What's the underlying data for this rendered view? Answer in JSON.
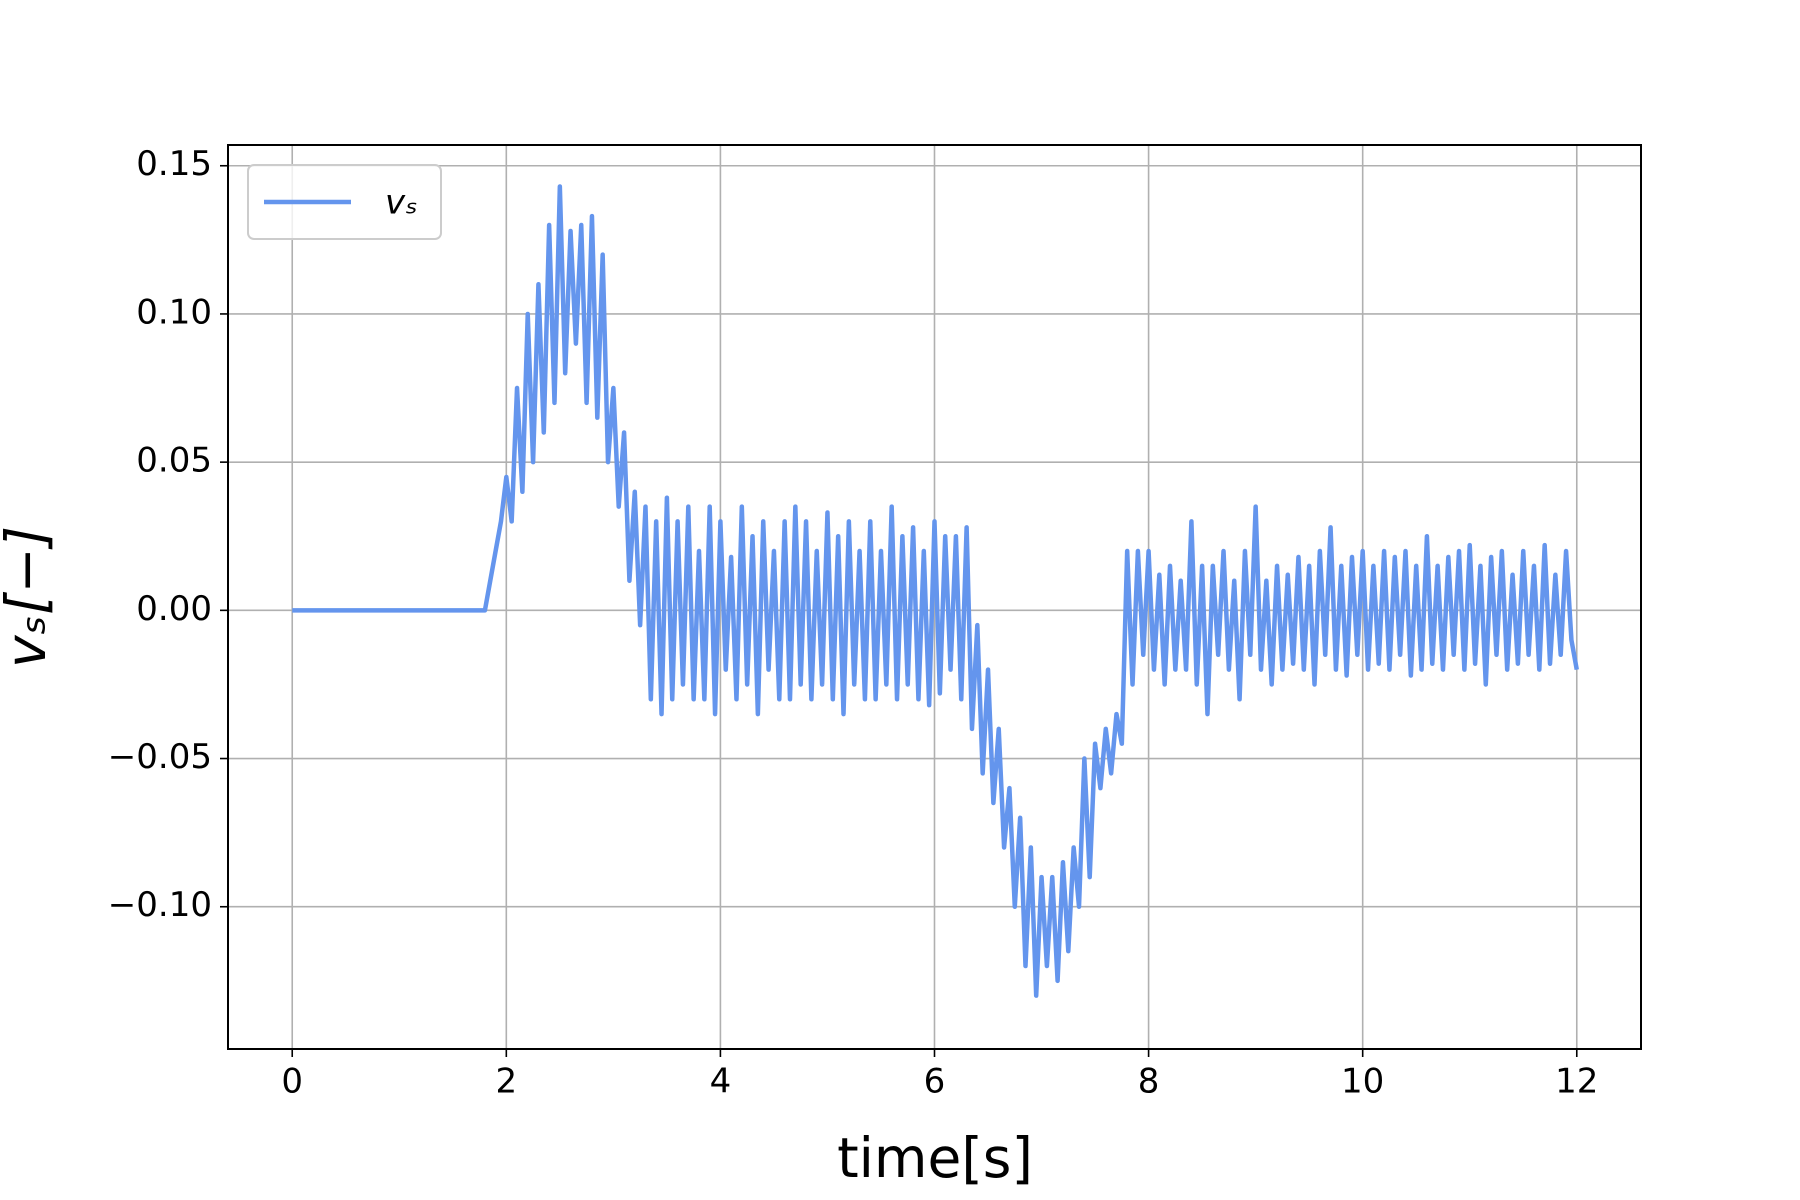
{
  "chart_data": {
    "type": "line",
    "xlabel": "time[s]",
    "ylabel": "vₛ[−]",
    "x": [
      0,
      1.8,
      1.85,
      1.9,
      1.95,
      2.0,
      2.05,
      2.1,
      2.15,
      2.2,
      2.25,
      2.3,
      2.35,
      2.4,
      2.45,
      2.5,
      2.55,
      2.6,
      2.65,
      2.7,
      2.75,
      2.8,
      2.85,
      2.9,
      2.95,
      3.0,
      3.05,
      3.1,
      3.15,
      3.2,
      3.25,
      3.3,
      3.35,
      3.4,
      3.45,
      3.5,
      3.55,
      3.6,
      3.65,
      3.7,
      3.75,
      3.8,
      3.85,
      3.9,
      3.95,
      4.0,
      4.05,
      4.1,
      4.15,
      4.2,
      4.25,
      4.3,
      4.35,
      4.4,
      4.45,
      4.5,
      4.55,
      4.6,
      4.65,
      4.7,
      4.75,
      4.8,
      4.85,
      4.9,
      4.95,
      5.0,
      5.05,
      5.1,
      5.15,
      5.2,
      5.25,
      5.3,
      5.35,
      5.4,
      5.45,
      5.5,
      5.55,
      5.6,
      5.65,
      5.7,
      5.75,
      5.8,
      5.85,
      5.9,
      5.95,
      6.0,
      6.05,
      6.1,
      6.15,
      6.2,
      6.25,
      6.3,
      6.35,
      6.4,
      6.45,
      6.5,
      6.55,
      6.6,
      6.65,
      6.7,
      6.75,
      6.8,
      6.85,
      6.9,
      6.95,
      7.0,
      7.05,
      7.1,
      7.15,
      7.2,
      7.25,
      7.3,
      7.35,
      7.4,
      7.45,
      7.5,
      7.55,
      7.6,
      7.65,
      7.7,
      7.75,
      7.8,
      7.85,
      7.9,
      7.95,
      8.0,
      8.05,
      8.1,
      8.15,
      8.2,
      8.25,
      8.3,
      8.35,
      8.4,
      8.45,
      8.5,
      8.55,
      8.6,
      8.65,
      8.7,
      8.75,
      8.8,
      8.85,
      8.9,
      8.95,
      9.0,
      9.05,
      9.1,
      9.15,
      9.2,
      9.25,
      9.3,
      9.35,
      9.4,
      9.45,
      9.5,
      9.55,
      9.6,
      9.65,
      9.7,
      9.75,
      9.8,
      9.85,
      9.9,
      9.95,
      10.0,
      10.05,
      10.1,
      10.15,
      10.2,
      10.25,
      10.3,
      10.35,
      10.4,
      10.45,
      10.5,
      10.55,
      10.6,
      10.65,
      10.7,
      10.75,
      10.8,
      10.85,
      10.9,
      10.95,
      11.0,
      11.05,
      11.1,
      11.15,
      11.2,
      11.25,
      11.3,
      11.35,
      11.4,
      11.45,
      11.5,
      11.55,
      11.6,
      11.65,
      11.7,
      11.75,
      11.8,
      11.85,
      11.9,
      11.95,
      12.0
    ],
    "series": [
      {
        "name": "vₛ",
        "color": "#6495ed",
        "values": [
          0,
          0,
          0.01,
          0.02,
          0.03,
          0.045,
          0.03,
          0.075,
          0.04,
          0.1,
          0.05,
          0.11,
          0.06,
          0.13,
          0.07,
          0.143,
          0.08,
          0.128,
          0.09,
          0.13,
          0.07,
          0.133,
          0.065,
          0.12,
          0.05,
          0.075,
          0.035,
          0.06,
          0.01,
          0.04,
          -0.005,
          0.035,
          -0.03,
          0.03,
          -0.035,
          0.038,
          -0.03,
          0.03,
          -0.025,
          0.035,
          -0.03,
          0.02,
          -0.03,
          0.035,
          -0.035,
          0.03,
          -0.02,
          0.018,
          -0.03,
          0.035,
          -0.025,
          0.025,
          -0.035,
          0.03,
          -0.02,
          0.02,
          -0.03,
          0.03,
          -0.03,
          0.035,
          -0.025,
          0.03,
          -0.03,
          0.02,
          -0.025,
          0.033,
          -0.03,
          0.025,
          -0.035,
          0.03,
          -0.025,
          0.02,
          -0.03,
          0.03,
          -0.03,
          0.02,
          -0.025,
          0.035,
          -0.03,
          0.025,
          -0.025,
          0.028,
          -0.03,
          0.02,
          -0.032,
          0.03,
          -0.028,
          0.025,
          -0.02,
          0.025,
          -0.03,
          0.028,
          -0.04,
          -0.005,
          -0.055,
          -0.02,
          -0.065,
          -0.04,
          -0.08,
          -0.06,
          -0.1,
          -0.07,
          -0.12,
          -0.08,
          -0.13,
          -0.09,
          -0.12,
          -0.09,
          -0.125,
          -0.085,
          -0.115,
          -0.08,
          -0.1,
          -0.05,
          -0.09,
          -0.045,
          -0.06,
          -0.04,
          -0.055,
          -0.035,
          -0.045,
          0.02,
          -0.025,
          0.02,
          -0.015,
          0.02,
          -0.02,
          0.012,
          -0.025,
          0.015,
          -0.02,
          0.01,
          -0.02,
          0.03,
          -0.025,
          0.015,
          -0.035,
          0.015,
          -0.015,
          0.02,
          -0.02,
          0.01,
          -0.03,
          0.02,
          -0.015,
          0.035,
          -0.02,
          0.01,
          -0.025,
          0.015,
          -0.02,
          0.012,
          -0.018,
          0.018,
          -0.02,
          0.015,
          -0.025,
          0.02,
          -0.015,
          0.028,
          -0.02,
          0.015,
          -0.022,
          0.018,
          -0.015,
          0.02,
          -0.02,
          0.015,
          -0.018,
          0.02,
          -0.02,
          0.018,
          -0.015,
          0.02,
          -0.022,
          0.015,
          -0.02,
          0.025,
          -0.018,
          0.015,
          -0.02,
          0.018,
          -0.015,
          0.02,
          -0.02,
          0.022,
          -0.018,
          0.015,
          -0.025,
          0.018,
          -0.015,
          0.02,
          -0.02,
          0.012,
          -0.018,
          0.02,
          -0.015,
          0.015,
          -0.02,
          0.022,
          -0.018,
          0.012,
          -0.015,
          0.02,
          -0.01,
          -0.02
        ]
      }
    ],
    "xlim": [
      -0.6,
      12.6
    ],
    "ylim": [
      -0.148,
      0.157
    ],
    "xticks": [
      0,
      2,
      4,
      6,
      8,
      10,
      12
    ],
    "yticks": [
      {
        "value": -0.1,
        "label": "−0.10"
      },
      {
        "value": -0.05,
        "label": "−0.05"
      },
      {
        "value": 0,
        "label": "0.00"
      },
      {
        "value": 0.05,
        "label": "0.05"
      },
      {
        "value": 0.1,
        "label": "0.10"
      },
      {
        "value": 0.15,
        "label": "0.15"
      }
    ],
    "grid": true,
    "legend": "upper left"
  }
}
